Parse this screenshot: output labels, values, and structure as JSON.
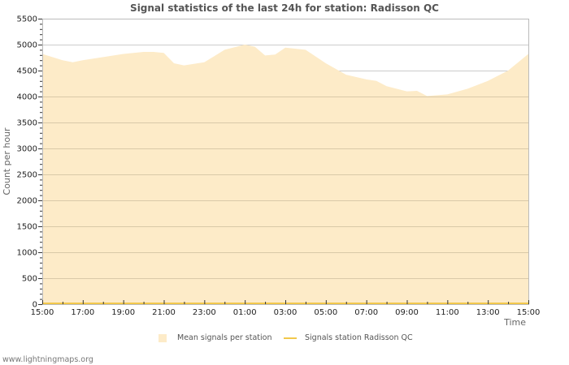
{
  "header": {
    "title": "Signal statistics of the last 24h for station: Radisson QC"
  },
  "legend": {
    "items": [
      {
        "label": "Mean signals per station",
        "type": "area",
        "color": "#fdebc8"
      },
      {
        "label": "Signals station Radisson QC",
        "type": "line",
        "color": "#f2c84b"
      }
    ]
  },
  "footer": {
    "credit": "www.lightningmaps.org"
  },
  "colors": {
    "area_fill": "#fdebc8",
    "station_line": "#f2c84b",
    "grid": "#cccccc",
    "grid_on_area": "#d9c9a8",
    "axis": "#bbbbbb"
  },
  "chart_data": {
    "type": "area",
    "title": "Signal statistics of the last 24h for station: Radisson QC",
    "xlabel": "Time",
    "ylabel": "Count per hour",
    "ylim": [
      0,
      5500
    ],
    "yticks": [
      0,
      500,
      1000,
      1500,
      2000,
      2500,
      3000,
      3500,
      4000,
      4500,
      5000,
      5500
    ],
    "xticks": [
      "15:00",
      "17:00",
      "19:00",
      "21:00",
      "23:00",
      "01:00",
      "03:00",
      "05:00",
      "07:00",
      "09:00",
      "11:00",
      "13:00",
      "15:00"
    ],
    "grid": true,
    "legend_position": "bottom",
    "x_hours": [
      0,
      1,
      1.5,
      2,
      3,
      4,
      5,
      5.5,
      6,
      6.5,
      7,
      8,
      8.5,
      9,
      10,
      10.5,
      11,
      11.5,
      12,
      13,
      14,
      15,
      16,
      16.5,
      17,
      18,
      18.5,
      19,
      20,
      21,
      22,
      23,
      24
    ],
    "series": [
      {
        "name": "Mean signals per station",
        "type": "area",
        "values": [
          4820,
          4700,
          4660,
          4700,
          4760,
          4820,
          4860,
          4860,
          4840,
          4640,
          4600,
          4660,
          4780,
          4900,
          5000,
          4960,
          4790,
          4810,
          4940,
          4900,
          4640,
          4420,
          4330,
          4300,
          4200,
          4100,
          4110,
          4010,
          4040,
          4150,
          4300,
          4500,
          4820
        ]
      },
      {
        "name": "Signals station Radisson QC",
        "type": "line",
        "values": [
          0,
          0,
          0,
          0,
          0,
          0,
          0,
          0,
          0,
          0,
          0,
          0,
          0,
          0,
          0,
          0,
          0,
          0,
          0,
          0,
          0,
          0,
          0,
          0,
          0,
          0,
          0,
          0,
          0,
          0,
          0,
          0,
          0
        ]
      }
    ]
  }
}
